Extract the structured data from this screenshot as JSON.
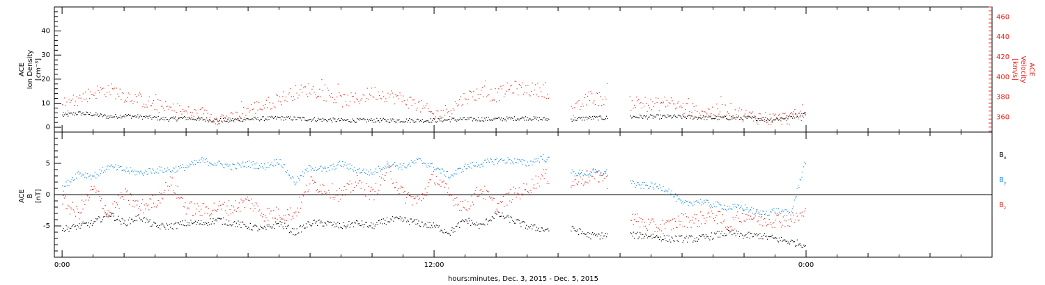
{
  "chart_data": [
    {
      "type": "scatter",
      "panel": "top",
      "ylabel": [
        "ACE",
        "Ion Density",
        "[cm⁻³]"
      ],
      "ylim": [
        -2,
        50
      ],
      "yticks": [
        0,
        10,
        20,
        30,
        40
      ],
      "y2label": [
        "ACE",
        "Velocity",
        "[km/s]"
      ],
      "y2lim": [
        345,
        470
      ],
      "y2ticks": [
        360,
        380,
        400,
        420,
        440,
        460
      ],
      "colors": {
        "density": "#000000",
        "velocity": "#e8251f"
      },
      "series": [
        {
          "axis": "left",
          "color": "#000000",
          "x": [
            0,
            0.5,
            1,
            1.5,
            2,
            2.5,
            3,
            3.5,
            4,
            5,
            6,
            7,
            8,
            9,
            10,
            11,
            12,
            13,
            14,
            15,
            15.5,
            16.5,
            17,
            17.5,
            18,
            19,
            20,
            21,
            22,
            23,
            23.5,
            24
          ],
          "y": [
            5,
            6,
            5.5,
            4.5,
            5,
            4.5,
            4,
            3.5,
            4,
            3,
            3.5,
            4,
            3.5,
            3,
            3,
            3,
            3,
            3.5,
            3.5,
            4,
            3.5,
            3.5,
            4,
            4,
            4.5,
            4.5,
            4.5,
            4,
            4,
            3.5,
            4.5,
            6
          ]
        },
        {
          "axis": "right",
          "color": "#e8251f",
          "x": [
            0,
            0.5,
            1,
            1.5,
            2,
            2.5,
            3,
            3.5,
            4,
            4.5,
            5,
            5.5,
            6,
            6.5,
            7,
            7.5,
            8,
            8.5,
            9,
            9.5,
            10,
            10.5,
            11,
            11.5,
            12,
            12.5,
            13,
            13.5,
            14,
            14.5,
            15,
            15.5,
            16.5,
            17,
            17.5,
            18,
            18.5,
            19,
            19.5,
            20,
            20.5,
            21,
            21.5,
            22,
            22.5,
            23,
            23.5,
            24
          ],
          "y": [
            370,
            378,
            385,
            388,
            382,
            378,
            372,
            368,
            365,
            362,
            360,
            358,
            368,
            372,
            378,
            385,
            388,
            383,
            377,
            378,
            385,
            382,
            378,
            372,
            362,
            368,
            380,
            385,
            382,
            390,
            388,
            388,
            366,
            380,
            378,
            370,
            375,
            372,
            375,
            370,
            366,
            366,
            368,
            362,
            360,
            358,
            360,
            364
          ]
        }
      ],
      "gaps": [
        [
          15.7,
          16.4
        ],
        [
          17.6,
          18.3
        ]
      ]
    },
    {
      "type": "scatter",
      "panel": "bottom",
      "ylabel": [
        "ACE",
        "B",
        "[nT]"
      ],
      "ylim": [
        -10,
        10
      ],
      "yticks": [
        -5,
        0,
        5
      ],
      "legend_position": "right",
      "legend": [
        {
          "name": "Bx",
          "base": "B",
          "sub": "x",
          "color": "#000000"
        },
        {
          "name": "By",
          "base": "B",
          "sub": "y",
          "color": "#1a8ee0"
        },
        {
          "name": "Bz",
          "base": "B",
          "sub": "z",
          "color": "#e8251f"
        }
      ],
      "series": [
        {
          "name": "Bx",
          "color": "#000000",
          "x": [
            0,
            0.5,
            1,
            1.5,
            2,
            2.5,
            3,
            3.5,
            4,
            4.5,
            5,
            5.5,
            6,
            6.5,
            7,
            7.5,
            8,
            8.5,
            9,
            9.5,
            10,
            10.5,
            11,
            11.5,
            12,
            12.5,
            13,
            13.5,
            14,
            14.5,
            15,
            15.5,
            16.5,
            17,
            17.5,
            18,
            18.5,
            19,
            19.5,
            20,
            20.5,
            21,
            21.5,
            22,
            22.5,
            23,
            23.5,
            24
          ],
          "y": [
            -5.5,
            -5,
            -4.5,
            -3,
            -4.5,
            -3.5,
            -5,
            -5,
            -4.5,
            -4.5,
            -4,
            -4.5,
            -5,
            -5.5,
            -4.5,
            -6,
            -4.5,
            -4.5,
            -5,
            -4.5,
            -5,
            -4,
            -4,
            -4.5,
            -5,
            -6,
            -4,
            -5,
            -3,
            -4,
            -5,
            -5.5,
            -5.5,
            -6.5,
            -6.5,
            -6,
            -6.5,
            -6.5,
            -7,
            -7,
            -7,
            -6.5,
            -6,
            -6.5,
            -6.5,
            -7,
            -7.5,
            -8
          ]
        },
        {
          "name": "By",
          "color": "#1a8ee0",
          "x": [
            0,
            0.5,
            1,
            1.5,
            2,
            2.5,
            3,
            3.5,
            4,
            4.5,
            5,
            5.5,
            6,
            6.5,
            7,
            7.5,
            8,
            8.5,
            9,
            9.5,
            10,
            10.5,
            11,
            11.5,
            12,
            12.5,
            13,
            13.5,
            14,
            14.5,
            15,
            15.5,
            16.5,
            17,
            17.5,
            18,
            18.5,
            19,
            19.5,
            20,
            20.5,
            21,
            21.5,
            22,
            22.5,
            23,
            23.5,
            24
          ],
          "y": [
            1,
            3.5,
            3,
            4.5,
            4,
            3.5,
            4,
            4,
            4.5,
            5.5,
            5,
            4.5,
            5,
            4.5,
            5.5,
            2,
            4.5,
            4,
            5,
            4,
            3.5,
            5,
            4.5,
            5.5,
            4.5,
            3,
            4.5,
            5,
            5.5,
            5.5,
            5,
            6,
            3.5,
            3.5,
            3.5,
            4,
            1.5,
            1.5,
            1,
            -1.5,
            -1,
            -1.5,
            -2,
            -2,
            -3,
            -2.5,
            -3,
            6
          ]
        },
        {
          "name": "Bz",
          "color": "#e8251f",
          "x": [
            0,
            0.5,
            1,
            1.5,
            2,
            2.5,
            3,
            3.5,
            4,
            4.5,
            5,
            5.5,
            6,
            6.5,
            7,
            7.5,
            8,
            8.5,
            9,
            9.5,
            10,
            10.5,
            11,
            11.5,
            12,
            12.5,
            13,
            13.5,
            14,
            14.5,
            15,
            15.5,
            16.5,
            17,
            17.5,
            18,
            18.5,
            19,
            19.5,
            20,
            20.5,
            21,
            21.5,
            22,
            22.5,
            23,
            23.5,
            24
          ],
          "y": [
            -1,
            -3,
            1,
            -3,
            0,
            -2,
            -1,
            2,
            -2,
            -2.5,
            -2,
            -2,
            -1,
            -3,
            -3,
            -3,
            2,
            1,
            0,
            2,
            0,
            4,
            0,
            -1,
            3,
            0,
            -2,
            1,
            -2,
            0,
            1,
            3,
            2,
            3,
            3,
            -2,
            -4,
            -5,
            -5,
            -4,
            -4,
            -3,
            -5,
            -3,
            -4,
            -4,
            -4,
            -3
          ]
        }
      ],
      "gaps": [
        [
          15.7,
          16.4
        ],
        [
          17.6,
          18.3
        ]
      ]
    }
  ],
  "xaxis": {
    "xlim": [
      -0.25,
      30
    ],
    "major_ticks": [
      0,
      12,
      24
    ],
    "tick_labels": [
      "0:00",
      "12:00",
      "0:00"
    ],
    "xlabel": "hours:minutes, Dec.  3, 2015 - Dec.  5, 2015"
  }
}
